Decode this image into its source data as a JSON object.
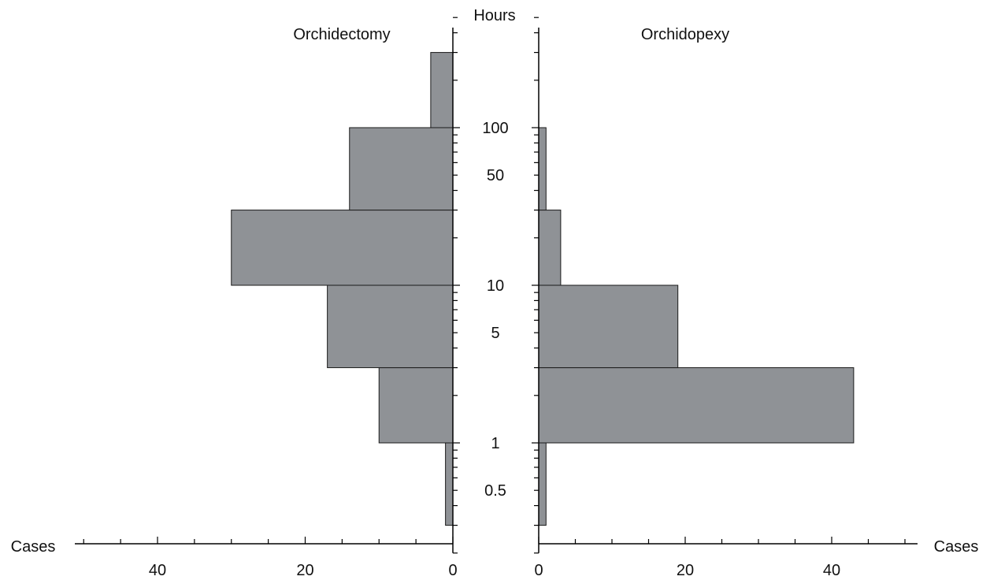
{
  "chart_data": {
    "type": "bar",
    "orientation": "horizontal",
    "layout": "back-to-back",
    "center_axis": {
      "label": "Hours",
      "scale": "log",
      "bin_edges": [
        0.3,
        1,
        3,
        10,
        30,
        100,
        300
      ],
      "tick_labels": [
        "0.5",
        "1",
        "5",
        "10",
        "50",
        "100"
      ]
    },
    "x_axis": {
      "left_label": "Cases",
      "right_label": "Cases",
      "range": [
        0,
        50
      ],
      "tick_labels_left": [
        "40",
        "20",
        "0"
      ],
      "tick_labels_right": [
        "0",
        "20",
        "40"
      ]
    },
    "series": [
      {
        "name": "Orchidectomy",
        "side": "left",
        "values": [
          1,
          10,
          17,
          30,
          14,
          3
        ]
      },
      {
        "name": "Orchidopexy",
        "side": "right",
        "values": [
          1,
          43,
          19,
          3,
          1,
          0
        ]
      }
    ],
    "bar_color": "#8f9296",
    "grid": false
  }
}
